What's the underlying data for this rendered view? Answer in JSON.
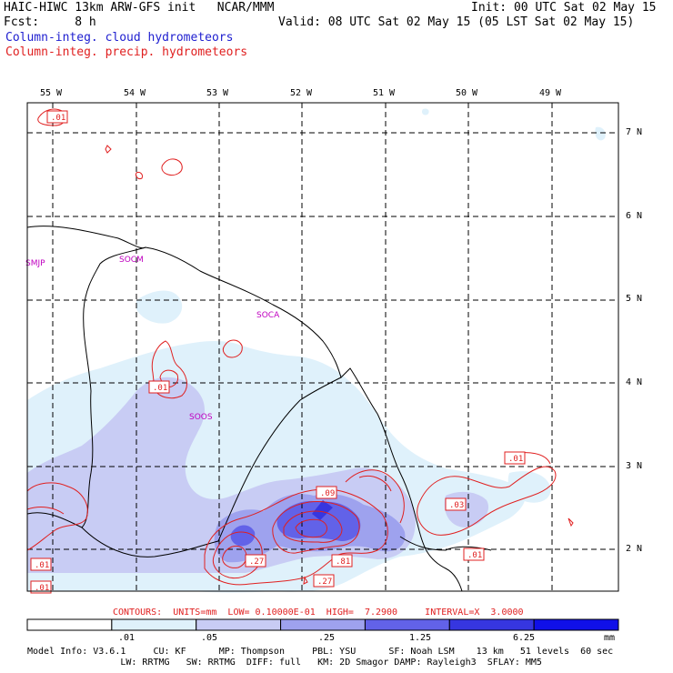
{
  "header": {
    "title": "HAIC-HIWC 13km ARW-GFS init   NCAR/MMM",
    "fcst": "Fcst:     8 h",
    "init": "Init: 00 UTC Sat 02 May 15",
    "valid": "Valid: 08 UTC Sat 02 May 15 (05 LST Sat 02 May 15)",
    "legend_cloud": "Column-integ. cloud hydrometeors",
    "legend_precip": "Column-integ. precip. hydrometeors"
  },
  "map": {
    "lon_labels": [
      "55 W",
      "54 W",
      "53 W",
      "52 W",
      "51 W",
      "50 W",
      "49 W"
    ],
    "lat_labels": [
      "7 N",
      "6 N",
      "5 N",
      "4 N",
      "3 N",
      "2 N"
    ],
    "stations": [
      "SMJP",
      "SOCM",
      "SOCA",
      "SOOS"
    ],
    "contour_labels": [
      ".01",
      ".01",
      ".09",
      ".01",
      ".03",
      ".27",
      ".81",
      ".27",
      ".01",
      ".01",
      ".01"
    ]
  },
  "colorbar": {
    "colors": [
      "#ffffff",
      "#dff1fb",
      "#c8ccf4",
      "#9ea2ee",
      "#6262e8",
      "#3636e0",
      "#1010e8"
    ],
    "labels": [
      ".01",
      ".05",
      ".25",
      "1.25",
      "6.25"
    ],
    "unit": "mm"
  },
  "contours_info": "CONTOURS:  UNITS=mm  LOW= 0.10000E-01  HIGH=  7.2900     INTERVAL=X  3.0000",
  "footer": {
    "line1": "Model Info: V3.6.1     CU: KF      MP: Thompson     PBL: YSU      SF: Noah LSM    13 km   51 levels  60 sec",
    "line2": "                 LW: RRTMG   SW: RRTMG  DIFF: full   KM: 2D Smagor DAMP: Rayleigh3  SFLAY: MM5"
  }
}
